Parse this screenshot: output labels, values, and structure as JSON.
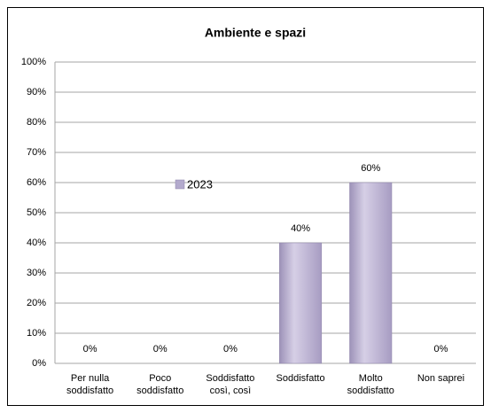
{
  "chart_data": {
    "type": "bar",
    "title": "Ambiente e spazi",
    "categories": [
      [
        "Per nulla",
        "soddisfatto"
      ],
      [
        "Poco",
        "soddisfatto"
      ],
      [
        "Soddisfatto",
        "così, così"
      ],
      [
        "Soddisfatto"
      ],
      [
        "Molto",
        "soddisfatto"
      ],
      [
        "Non saprei"
      ]
    ],
    "series": [
      {
        "name": "2023",
        "color": "#b3aacd",
        "values": [
          0,
          0,
          0,
          40,
          60,
          0
        ],
        "value_labels": [
          "0%",
          "0%",
          "0%",
          "40%",
          "60%",
          "0%"
        ]
      }
    ],
    "ylim": [
      0,
      100
    ],
    "yticks": [
      {
        "value": 0,
        "label": "0%"
      },
      {
        "value": 10,
        "label": "10%"
      },
      {
        "value": 20,
        "label": "20%"
      },
      {
        "value": 30,
        "label": "30%"
      },
      {
        "value": 40,
        "label": "40%"
      },
      {
        "value": 50,
        "label": "50%"
      },
      {
        "value": 60,
        "label": "60%"
      },
      {
        "value": 70,
        "label": "70%"
      },
      {
        "value": 80,
        "label": "80%"
      },
      {
        "value": 90,
        "label": "90%"
      },
      {
        "value": 100,
        "label": "100%"
      }
    ],
    "grid": true
  }
}
